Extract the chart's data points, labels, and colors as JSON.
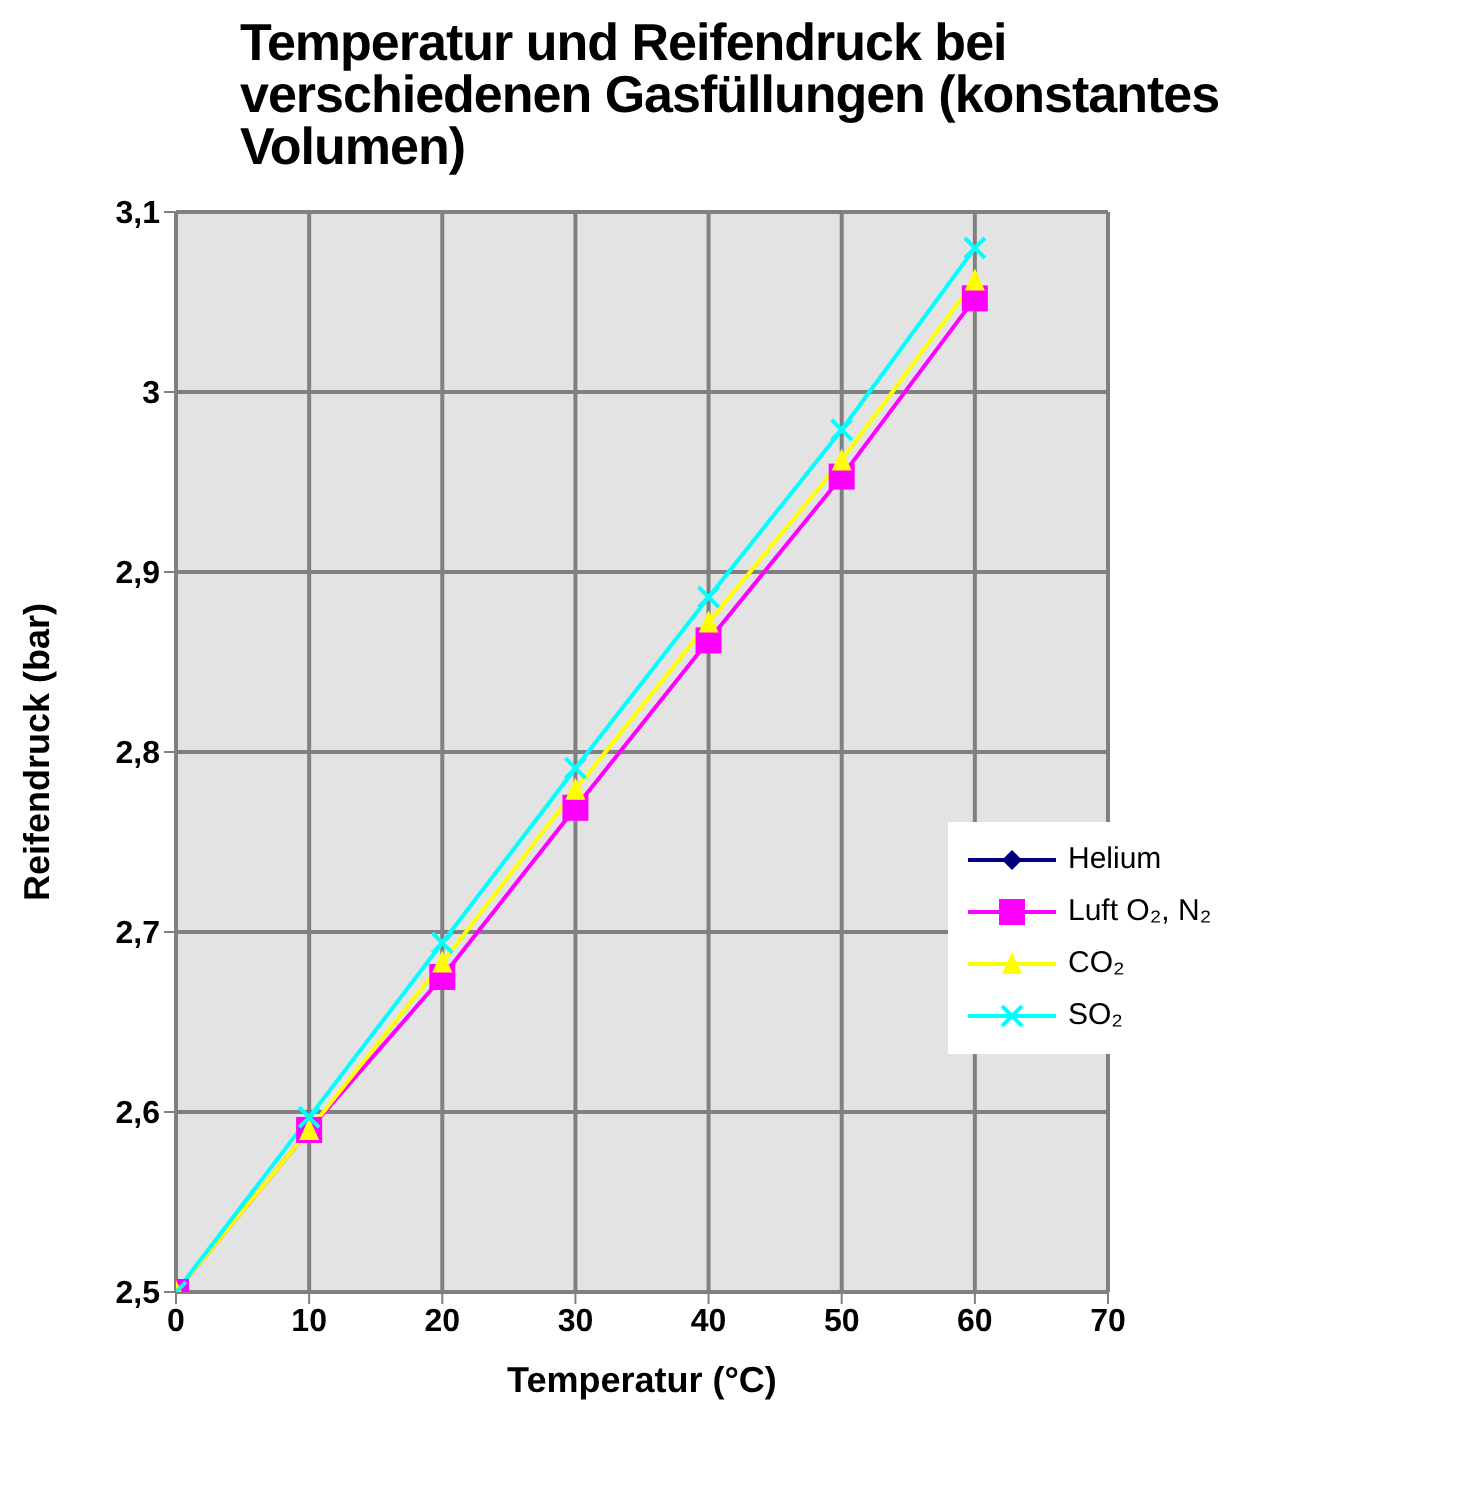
{
  "chart_data": {
    "type": "line",
    "title": "Temperatur und Reifendruck bei verschiedenen Gasfüllungen (konstantes Volumen)",
    "xlabel": "Temperatur (°C)",
    "ylabel": "Reifendruck (bar)",
    "x": [
      0,
      10,
      20,
      30,
      40,
      50,
      60
    ],
    "series": [
      {
        "name": "Helium",
        "color": "#000080",
        "marker": "diamond",
        "values": [
          null,
          null,
          null,
          null,
          null,
          null,
          null
        ]
      },
      {
        "name": "Luft O₂, N₂",
        "color": "#ff00ff",
        "marker": "square",
        "values": [
          2.5,
          2.59,
          2.675,
          2.769,
          2.862,
          2.953,
          3.052
        ]
      },
      {
        "name": "CO₂",
        "color": "#ffff00",
        "marker": "triangle",
        "values": [
          2.5,
          2.59,
          2.683,
          2.779,
          2.872,
          2.962,
          3.062
        ]
      },
      {
        "name": "SO₂",
        "color": "#00ffff",
        "marker": "cross",
        "values": [
          2.5,
          2.597,
          2.694,
          2.791,
          2.886,
          2.979,
          3.08
        ]
      }
    ],
    "xlim": [
      0,
      70
    ],
    "xticks": [
      0,
      10,
      20,
      30,
      40,
      50,
      60,
      70
    ],
    "ylim": [
      2.5,
      3.1
    ],
    "yticks": [
      {
        "value": 2.5,
        "label": "2,5"
      },
      {
        "value": 2.6,
        "label": "2,6"
      },
      {
        "value": 2.7,
        "label": "2,7"
      },
      {
        "value": 2.8,
        "label": "2,8"
      },
      {
        "value": 2.9,
        "label": "2,9"
      },
      3,
      {
        "value": 3.1,
        "label": "3,1"
      }
    ],
    "grid": true,
    "legend": "right"
  }
}
